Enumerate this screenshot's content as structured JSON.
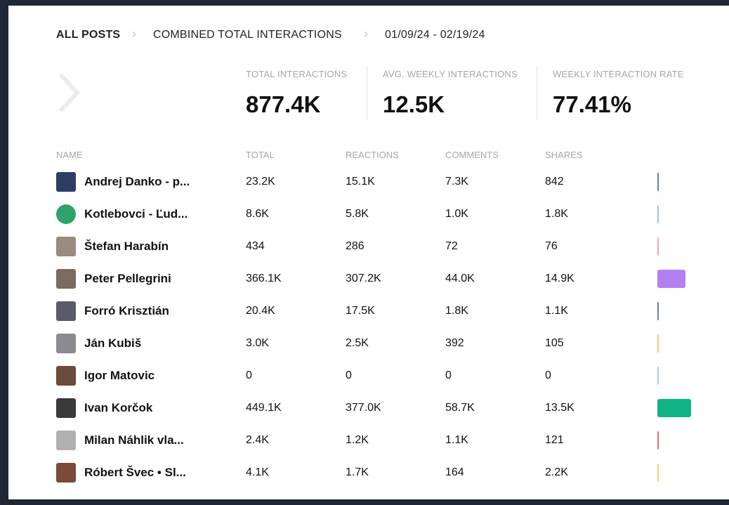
{
  "breadcrumb": [
    "ALL POSTS",
    "COMBINED TOTAL INTERACTIONS",
    "01/09/24 - 02/19/24"
  ],
  "stats": [
    {
      "label": "TOTAL INTERACTIONS",
      "value": "877.4K"
    },
    {
      "label": "AVG. WEEKLY INTERACTIONS",
      "value": "12.5K"
    },
    {
      "label": "WEEKLY INTERACTION RATE",
      "value": "77.41%"
    }
  ],
  "table": {
    "columns": [
      "NAME",
      "TOTAL",
      "REACTIONS",
      "COMMENTS",
      "SHARES"
    ],
    "rows": [
      [
        "Andrej Danko - p...",
        "23.2K",
        "15.1K",
        "7.3K",
        "842"
      ],
      [
        "Kotlebovci - Ľud...",
        "8.6K",
        "5.8K",
        "1.0K",
        "1.8K"
      ],
      [
        "Štefan Harabín",
        "434",
        "286",
        "72",
        "76"
      ],
      [
        "Peter Pellegrini",
        "366.1K",
        "307.2K",
        "44.0K",
        "14.9K"
      ],
      [
        "Forró Krisztián",
        "20.4K",
        "17.5K",
        "1.8K",
        "1.1K"
      ],
      [
        "Ján Kubiš",
        "3.0K",
        "2.5K",
        "392",
        "105"
      ],
      [
        "Igor Matovic",
        "0",
        "0",
        "0",
        "0"
      ],
      [
        "Ivan Korčok",
        "449.1K",
        "377.0K",
        "58.7K",
        "13.5K"
      ],
      [
        "Milan Náhlik vla...",
        "2.4K",
        "1.2K",
        "1.1K",
        "121"
      ],
      [
        "Róbert Švec • Sl...",
        "4.1K",
        "1.7K",
        "164",
        "2.2K"
      ]
    ]
  }
}
